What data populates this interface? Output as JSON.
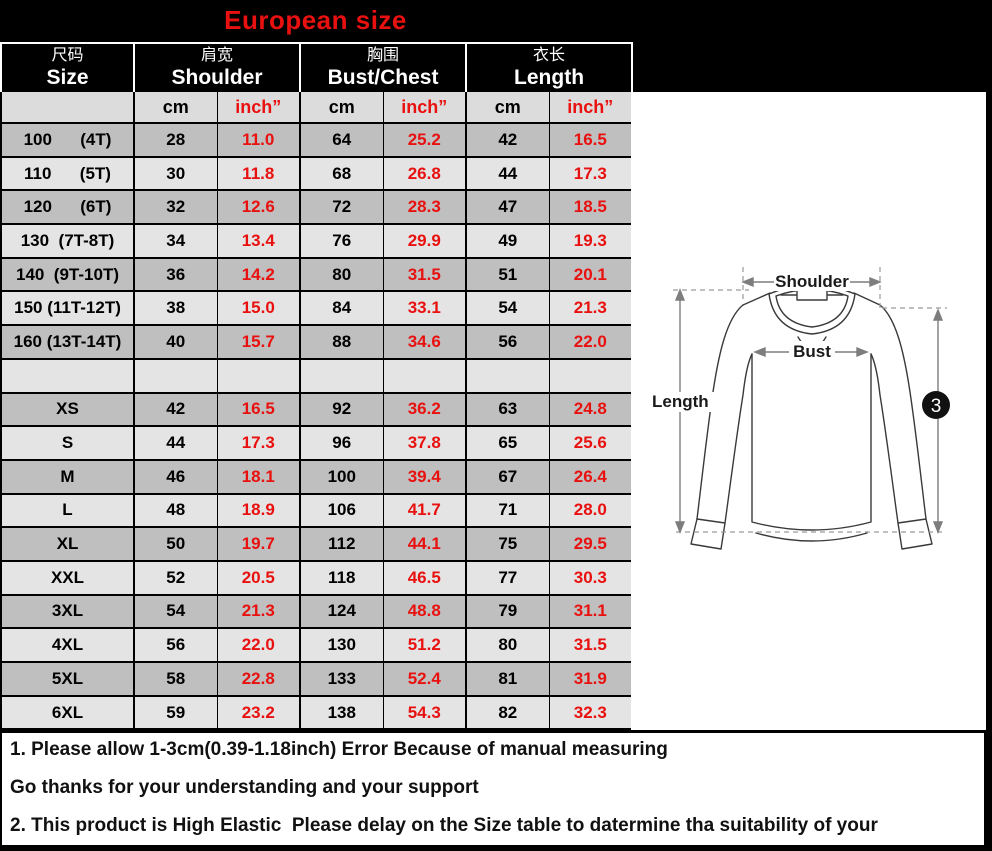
{
  "title": "European size",
  "colors": {
    "accent_red": "#e8110f",
    "header_bg": "#000000",
    "row_dark": "#bfbfbf",
    "row_light": "#e4e4e4",
    "subheader_grey": "#dcdcdc"
  },
  "table": {
    "col_groups": [
      {
        "zh": "尺码",
        "en": "Size"
      },
      {
        "zh": "肩宽",
        "en": "Shoulder"
      },
      {
        "zh": "胸围",
        "en": "Bust/Chest"
      },
      {
        "zh": "衣长",
        "en": "Length"
      }
    ],
    "unit_cm": "cm",
    "unit_inch": "inch”",
    "rows": [
      {
        "size": "100      (4T)",
        "shoulder_cm": "28",
        "shoulder_in": "11.0",
        "bust_cm": "64",
        "bust_in": "25.2",
        "length_cm": "42",
        "length_in": "16.5"
      },
      {
        "size": "110      (5T)",
        "shoulder_cm": "30",
        "shoulder_in": "11.8",
        "bust_cm": "68",
        "bust_in": "26.8",
        "length_cm": "44",
        "length_in": "17.3"
      },
      {
        "size": "120      (6T)",
        "shoulder_cm": "32",
        "shoulder_in": "12.6",
        "bust_cm": "72",
        "bust_in": "28.3",
        "length_cm": "47",
        "length_in": "18.5"
      },
      {
        "size": "130  (7T-8T)",
        "shoulder_cm": "34",
        "shoulder_in": "13.4",
        "bust_cm": "76",
        "bust_in": "29.9",
        "length_cm": "49",
        "length_in": "19.3"
      },
      {
        "size": "140  (9T-10T)",
        "shoulder_cm": "36",
        "shoulder_in": "14.2",
        "bust_cm": "80",
        "bust_in": "31.5",
        "length_cm": "51",
        "length_in": "20.1"
      },
      {
        "size": "150 (11T-12T)",
        "shoulder_cm": "38",
        "shoulder_in": "15.0",
        "bust_cm": "84",
        "bust_in": "33.1",
        "length_cm": "54",
        "length_in": "21.3"
      },
      {
        "size": "160 (13T-14T)",
        "shoulder_cm": "40",
        "shoulder_in": "15.7",
        "bust_cm": "88",
        "bust_in": "34.6",
        "length_cm": "56",
        "length_in": "22.0"
      },
      {
        "size": "",
        "shoulder_cm": "",
        "shoulder_in": "",
        "bust_cm": "",
        "bust_in": "",
        "length_cm": "",
        "length_in": ""
      },
      {
        "size": "XS",
        "shoulder_cm": "42",
        "shoulder_in": "16.5",
        "bust_cm": "92",
        "bust_in": "36.2",
        "length_cm": "63",
        "length_in": "24.8"
      },
      {
        "size": "S",
        "shoulder_cm": "44",
        "shoulder_in": "17.3",
        "bust_cm": "96",
        "bust_in": "37.8",
        "length_cm": "65",
        "length_in": "25.6"
      },
      {
        "size": "M",
        "shoulder_cm": "46",
        "shoulder_in": "18.1",
        "bust_cm": "100",
        "bust_in": "39.4",
        "length_cm": "67",
        "length_in": "26.4"
      },
      {
        "size": "L",
        "shoulder_cm": "48",
        "shoulder_in": "18.9",
        "bust_cm": "106",
        "bust_in": "41.7",
        "length_cm": "71",
        "length_in": "28.0"
      },
      {
        "size": "XL",
        "shoulder_cm": "50",
        "shoulder_in": "19.7",
        "bust_cm": "112",
        "bust_in": "44.1",
        "length_cm": "75",
        "length_in": "29.5"
      },
      {
        "size": "XXL",
        "shoulder_cm": "52",
        "shoulder_in": "20.5",
        "bust_cm": "118",
        "bust_in": "46.5",
        "length_cm": "77",
        "length_in": "30.3"
      },
      {
        "size": "3XL",
        "shoulder_cm": "54",
        "shoulder_in": "21.3",
        "bust_cm": "124",
        "bust_in": "48.8",
        "length_cm": "79",
        "length_in": "31.1"
      },
      {
        "size": "4XL",
        "shoulder_cm": "56",
        "shoulder_in": "22.0",
        "bust_cm": "130",
        "bust_in": "51.2",
        "length_cm": "80",
        "length_in": "31.5"
      },
      {
        "size": "5XL",
        "shoulder_cm": "58",
        "shoulder_in": "22.8",
        "bust_cm": "133",
        "bust_in": "52.4",
        "length_cm": "81",
        "length_in": "31.9"
      },
      {
        "size": "6XL",
        "shoulder_cm": "59",
        "shoulder_in": "23.2",
        "bust_cm": "138",
        "bust_in": "54.3",
        "length_cm": "82",
        "length_in": "32.3"
      }
    ]
  },
  "diagram": {
    "shoulder_label": "Shoulder",
    "bust_label": "Bust",
    "length_label": "Length",
    "badge": "3"
  },
  "notes": [
    "1. Please allow 1-3cm(0.39-1.18inch) Error Because of manual measuring",
    "Go thanks for your understanding and your support",
    "2. This product is High Elastic  Please delay on the Size table to datermine tha suitability of your"
  ]
}
